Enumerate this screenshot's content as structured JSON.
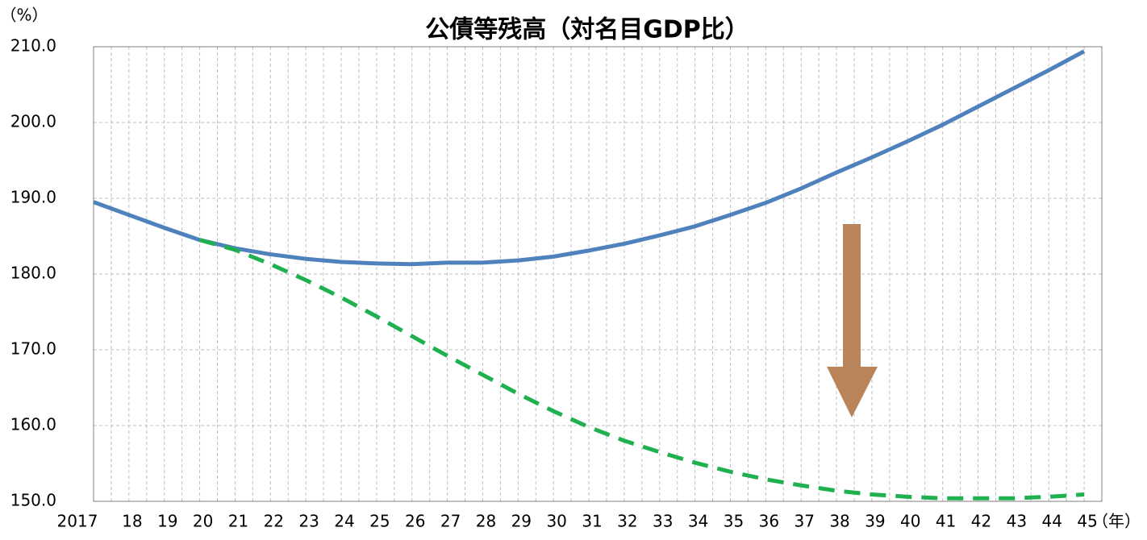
{
  "chart_data": {
    "type": "line",
    "title": "公債等残高（対名目GDP比）",
    "y_label": "（%）",
    "x_label": "（年）",
    "categories": [
      "2017",
      "18",
      "19",
      "20",
      "21",
      "22",
      "23",
      "24",
      "25",
      "26",
      "27",
      "28",
      "29",
      "30",
      "31",
      "32",
      "33",
      "34",
      "35",
      "36",
      "37",
      "38",
      "39",
      "40",
      "41",
      "42",
      "43",
      "44",
      "45"
    ],
    "series": [
      {
        "color": "#4f81bd",
        "dash": false,
        "values": [
          189.5,
          187.8,
          186.1,
          184.5,
          183.4,
          182.6,
          182.0,
          181.6,
          181.4,
          181.3,
          181.5,
          181.5,
          181.8,
          182.3,
          183.1,
          184.0,
          185.1,
          186.3,
          187.8,
          189.4,
          191.3,
          193.4,
          195.4,
          197.5,
          199.7,
          202.1,
          204.5,
          206.9,
          209.4
        ]
      },
      {
        "color": "#1fb050",
        "dash": true,
        "values": [
          null,
          null,
          null,
          184.5,
          183.2,
          181.3,
          179.2,
          176.9,
          174.4,
          171.8,
          169.2,
          166.7,
          164.2,
          161.9,
          159.8,
          158.0,
          156.5,
          155.1,
          153.9,
          152.9,
          152.1,
          151.4,
          150.9,
          150.6,
          150.4,
          150.4,
          150.4,
          150.6,
          150.9
        ]
      }
    ],
    "ylim": [
      150,
      210
    ],
    "yticks": [
      {
        "value": 150,
        "label": "150.0"
      },
      {
        "value": 160,
        "label": "160.0"
      },
      {
        "value": 170,
        "label": "170.0"
      },
      {
        "value": 180,
        "label": "180.0"
      },
      {
        "value": 190,
        "label": "190.0"
      },
      {
        "value": 200,
        "label": "200.0"
      },
      {
        "value": 210,
        "label": "210.0"
      }
    ],
    "grid": true
  }
}
